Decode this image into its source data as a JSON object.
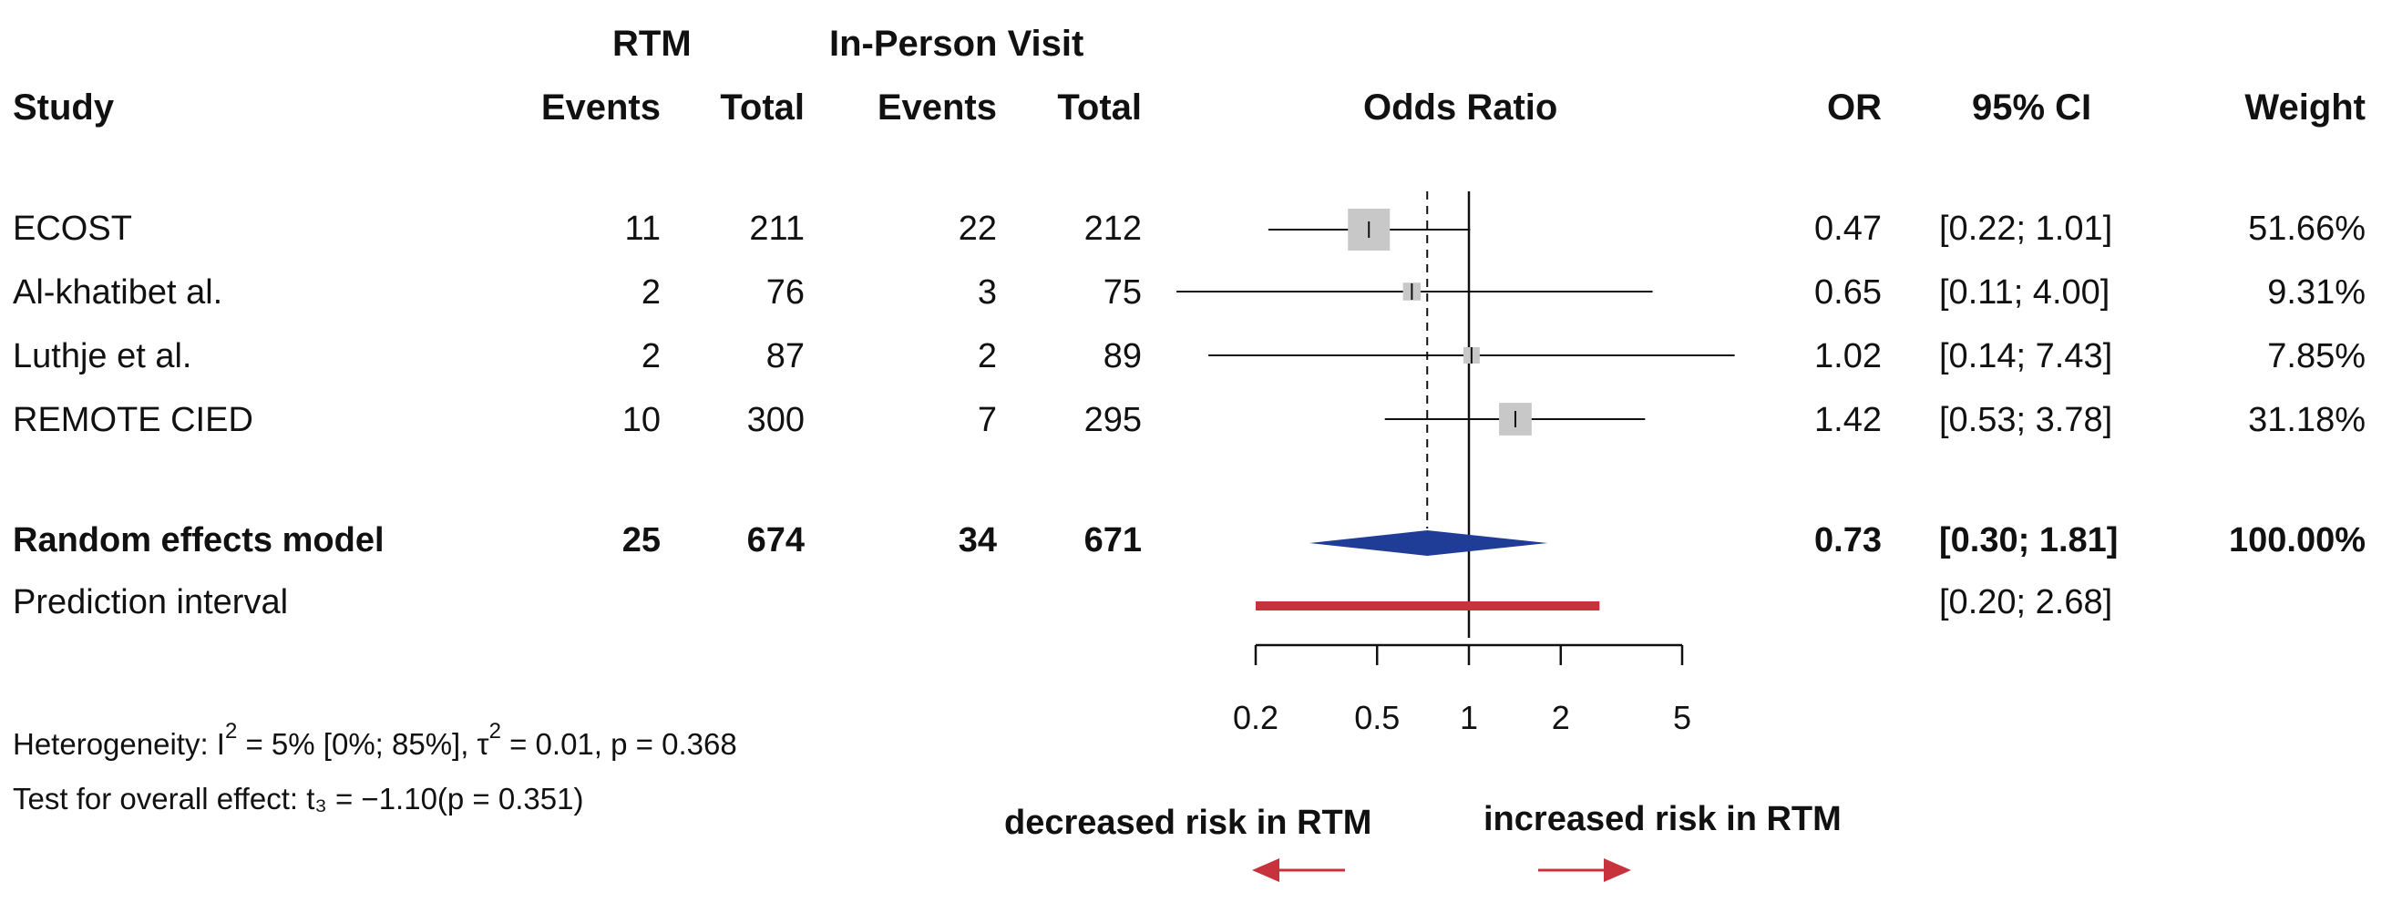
{
  "headers": {
    "group1": "RTM",
    "group2": "In-Person Visit",
    "study": "Study",
    "events1": "Events",
    "total1": "Total",
    "events2": "Events",
    "total2": "Total",
    "odds_ratio": "Odds Ratio",
    "or": "OR",
    "ci": "95% CI",
    "weight": "Weight"
  },
  "chart_data": {
    "type": "forest",
    "xlabel_left": "decreased risk in RTM",
    "xlabel_right": "increased risk in RTM",
    "x_scale": "log",
    "xlim": [
      0.2,
      5
    ],
    "x_ticks": [
      0.2,
      0.5,
      1,
      2,
      5
    ],
    "x_tick_labels": [
      "0.2",
      "0.5",
      "1",
      "2",
      "5"
    ],
    "null_line": 1,
    "pooled_reference_line": 0.73,
    "studies": [
      {
        "name": "ECOST",
        "events1": "11",
        "total1": "211",
        "events2": "22",
        "total2": "212",
        "or": 0.47,
        "lower": 0.22,
        "upper": 1.01,
        "or_text": "0.47",
        "ci_text": "[0.22; 1.01]",
        "weight_text": "51.66%",
        "weight": 51.66
      },
      {
        "name": "Al-khatibet al.",
        "events1": "2",
        "total1": "76",
        "events2": "3",
        "total2": "75",
        "or": 0.65,
        "lower": 0.11,
        "upper": 4.0,
        "or_text": "0.65",
        "ci_text": "[0.11; 4.00]",
        "weight_text": "9.31%",
        "weight": 9.31
      },
      {
        "name": "Luthje et al.",
        "events1": "2",
        "total1": "87",
        "events2": "2",
        "total2": "89",
        "or": 1.02,
        "lower": 0.14,
        "upper": 7.43,
        "or_text": "1.02",
        "ci_text": "[0.14; 7.43]",
        "weight_text": "7.85%",
        "weight": 7.85
      },
      {
        "name": "REMOTE CIED",
        "events1": "10",
        "total1": "300",
        "events2": "7",
        "total2": "295",
        "or": 1.42,
        "lower": 0.53,
        "upper": 3.78,
        "or_text": "1.42",
        "ci_text": "[0.53; 3.78]",
        "weight_text": "31.18%",
        "weight": 31.18
      }
    ],
    "pooled": {
      "name": "Random effects model",
      "events1": "25",
      "total1": "674",
      "events2": "34",
      "total2": "671",
      "or": 0.73,
      "lower": 0.3,
      "upper": 1.81,
      "or_text": "0.73",
      "ci_text": "[0.30; 1.81]",
      "weight_text": "100.00%"
    },
    "prediction": {
      "name": "Prediction interval",
      "lower": 0.2,
      "upper": 2.68,
      "ci_text": "[0.20; 2.68]"
    },
    "colors": {
      "square": "#c8c8c8",
      "diamond": "#1f3c96",
      "prediction": "#c8323c",
      "arrow": "#c8323c",
      "line": "#111111"
    }
  },
  "footer": {
    "heterogeneity_pre": "Heterogeneity: I",
    "heterogeneity_sup1": "2",
    "heterogeneity_mid": " = 5% [0%; 85%], τ",
    "heterogeneity_sup2": "2",
    "heterogeneity_post": " = 0.01, p = 0.368",
    "overall": "Test for overall effect: t₃ = −1.10(p = 0.351)"
  }
}
